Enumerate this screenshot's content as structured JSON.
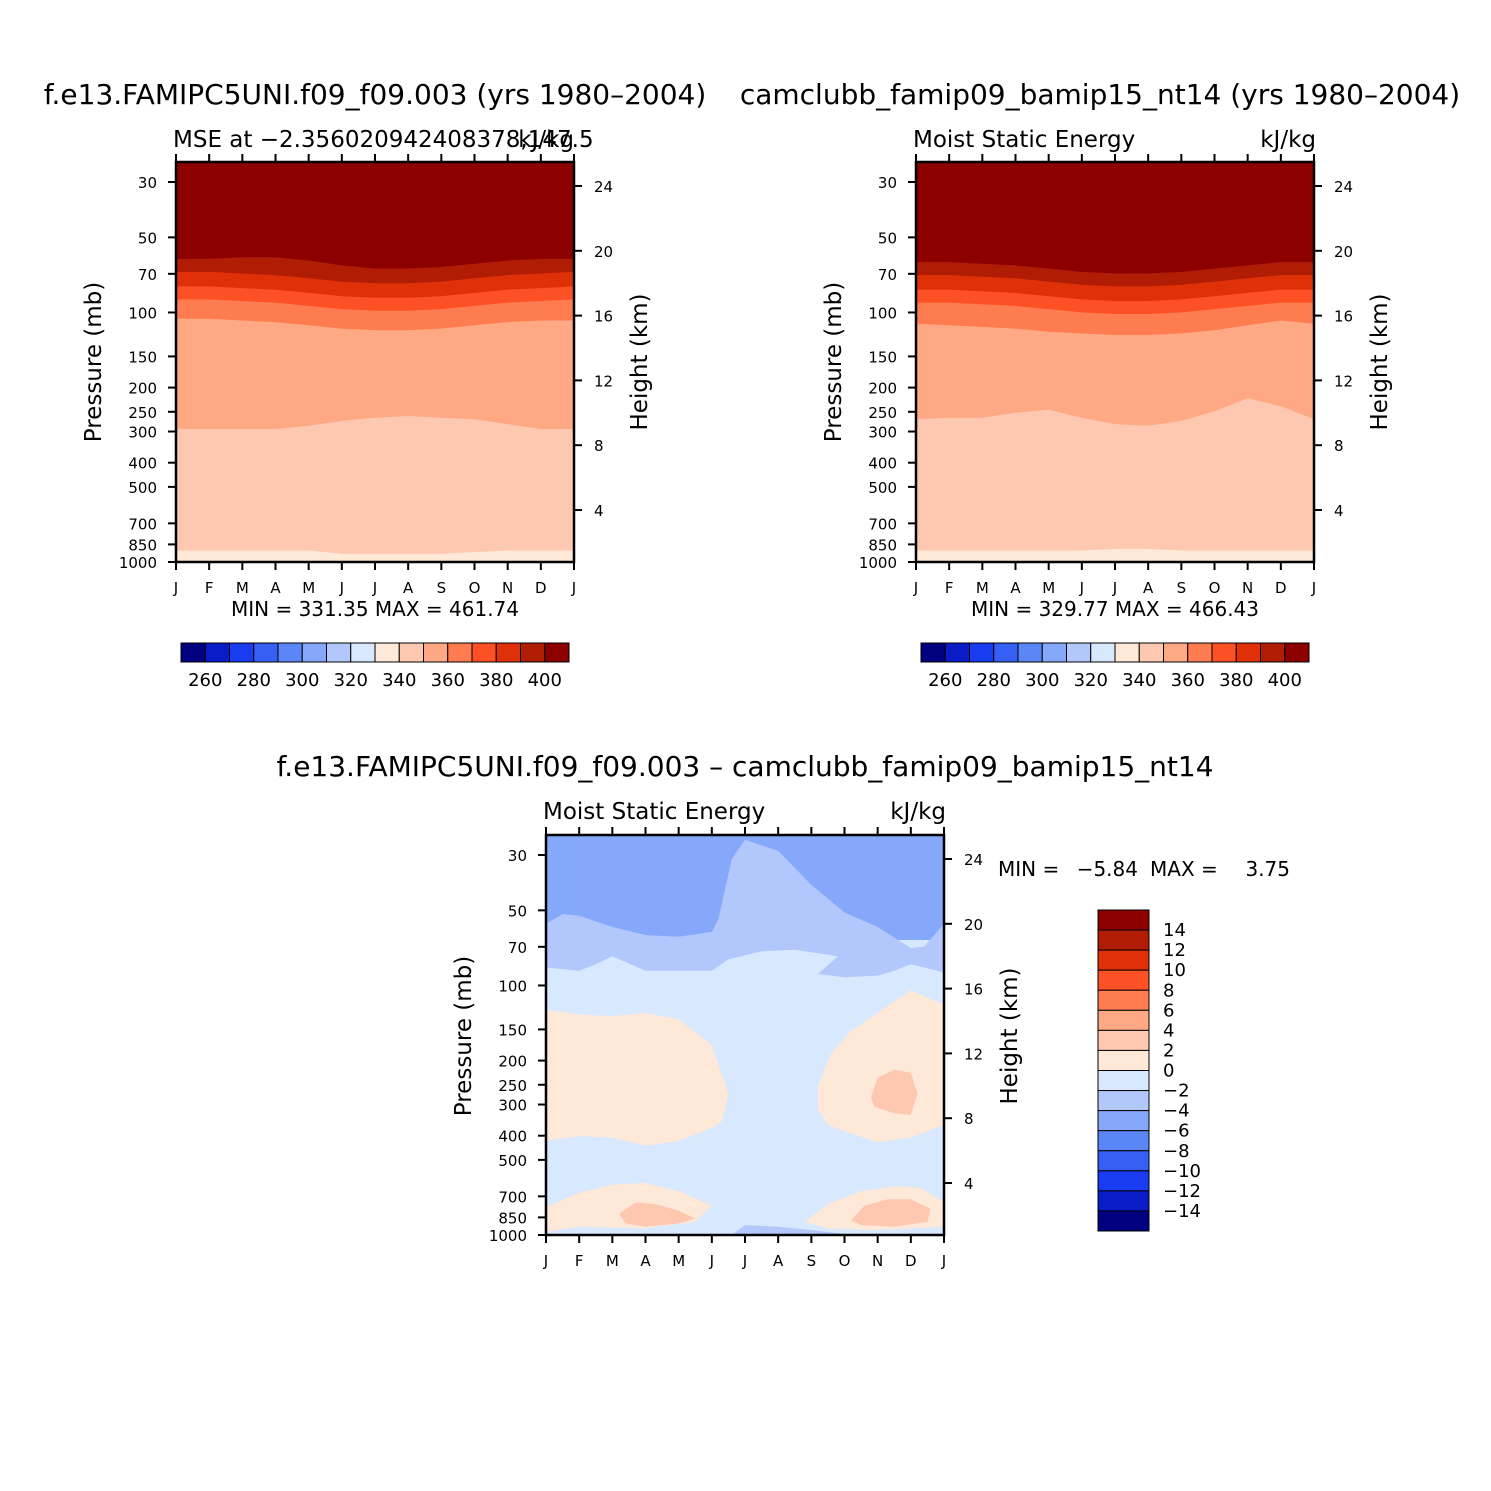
{
  "chart_data": [
    {
      "type": "heatmap",
      "title": "f.e13.FAMIPC5UNI.f09_f09.003 (yrs 1980–2004)",
      "subtitle_left": "MSE at −2.356020942408378,147.5",
      "subtitle_right": "kJ/kg",
      "ylabel": "Pressure (mb)",
      "ylabel_right": "Height (km)",
      "x_ticks": [
        "J",
        "F",
        "M",
        "A",
        "M",
        "J",
        "J",
        "A",
        "S",
        "O",
        "N",
        "D",
        "J"
      ],
      "y_ticks": [
        "30",
        "50",
        "70",
        "100",
        "150",
        "200",
        "250",
        "300",
        "400",
        "500",
        "700",
        "850",
        "1000"
      ],
      "y_ticks_values": [
        30,
        50,
        70,
        100,
        150,
        200,
        250,
        300,
        400,
        500,
        700,
        850,
        1000
      ],
      "height_ticks": [
        "24",
        "20",
        "16",
        "12",
        "8",
        "4"
      ],
      "height_ticks_values": [
        24,
        20,
        16,
        12,
        8,
        4
      ],
      "stats": "MIN = 331.35 MAX = 461.74",
      "levels": [
        260,
        270,
        280,
        290,
        300,
        310,
        320,
        330,
        340,
        350,
        360,
        370,
        380,
        390,
        400
      ],
      "colorbar_labels": [
        "260",
        "280",
        "300",
        "320",
        "340",
        "360",
        "380",
        "400"
      ],
      "colorbar_label_values": [
        260,
        280,
        300,
        320,
        340,
        360,
        380,
        400
      ],
      "colors": [
        "#000080",
        "#0a1cc8",
        "#1a3cf0",
        "#3660f5",
        "#5a86f8",
        "#86a8fb",
        "#b2c8fd",
        "#d8e8fe",
        "#fee8d8",
        "#fec8b0",
        "#fea884",
        "#fe7c50",
        "#fd5024",
        "#e03008",
        "#b01c04",
        "#8c0000"
      ],
      "min": 331.35,
      "max": 461.74,
      "boundaries": [
        {
          "level": 340,
          "heights_km": [
            1.5,
            1.5,
            1.5,
            1.5,
            1.5,
            1.3,
            1.3,
            1.3,
            1.3,
            1.4,
            1.5,
            1.5,
            1.5
          ]
        },
        {
          "level": 350,
          "heights_km": [
            9.0,
            9.0,
            9.0,
            9.0,
            9.2,
            9.5,
            9.7,
            9.8,
            9.7,
            9.6,
            9.3,
            9.0,
            9.0
          ]
        },
        {
          "level": 360,
          "heights_km": [
            15.8,
            15.8,
            15.7,
            15.6,
            15.4,
            15.2,
            15.1,
            15.1,
            15.2,
            15.4,
            15.6,
            15.7,
            15.7
          ]
        },
        {
          "level": 370,
          "heights_km": [
            17.0,
            17.0,
            16.9,
            16.8,
            16.6,
            16.4,
            16.3,
            16.3,
            16.4,
            16.6,
            16.8,
            16.9,
            17.0
          ]
        },
        {
          "level": 380,
          "heights_km": [
            17.8,
            17.8,
            17.7,
            17.6,
            17.4,
            17.2,
            17.1,
            17.1,
            17.2,
            17.4,
            17.6,
            17.7,
            17.8
          ]
        },
        {
          "level": 390,
          "heights_km": [
            18.7,
            18.7,
            18.6,
            18.5,
            18.3,
            18.1,
            18.0,
            18.0,
            18.1,
            18.3,
            18.5,
            18.6,
            18.7
          ]
        },
        {
          "level": 400,
          "heights_km": [
            19.5,
            19.5,
            19.6,
            19.6,
            19.4,
            19.1,
            18.9,
            18.9,
            19.0,
            19.2,
            19.4,
            19.5,
            19.5
          ]
        },
        {
          "level": 410,
          "heights_km": [
            20.2,
            20.2,
            20.3,
            20.3,
            20.1,
            19.8,
            19.6,
            19.6,
            19.7,
            19.9,
            20.1,
            20.2,
            20.2
          ]
        }
      ]
    },
    {
      "type": "heatmap",
      "title": "camclubb_famip09_bamip15_nt14 (yrs 1980–2004)",
      "subtitle_left": "Moist Static Energy",
      "subtitle_right": "kJ/kg",
      "ylabel": "Pressure (mb)",
      "ylabel_right": "Height (km)",
      "x_ticks": [
        "J",
        "F",
        "M",
        "A",
        "M",
        "J",
        "J",
        "A",
        "S",
        "O",
        "N",
        "D",
        "J"
      ],
      "y_ticks": [
        "30",
        "50",
        "70",
        "100",
        "150",
        "200",
        "250",
        "300",
        "400",
        "500",
        "700",
        "850",
        "1000"
      ],
      "y_ticks_values": [
        30,
        50,
        70,
        100,
        150,
        200,
        250,
        300,
        400,
        500,
        700,
        850,
        1000
      ],
      "height_ticks": [
        "24",
        "20",
        "16",
        "12",
        "8",
        "4"
      ],
      "height_ticks_values": [
        24,
        20,
        16,
        12,
        8,
        4
      ],
      "stats": "MIN = 329.77 MAX = 466.43",
      "levels": [
        260,
        270,
        280,
        290,
        300,
        310,
        320,
        330,
        340,
        350,
        360,
        370,
        380,
        390,
        400
      ],
      "colorbar_labels": [
        "260",
        "280",
        "300",
        "320",
        "340",
        "360",
        "380",
        "400"
      ],
      "colorbar_label_values": [
        260,
        280,
        300,
        320,
        340,
        360,
        380,
        400
      ],
      "colors": [
        "#000080",
        "#0a1cc8",
        "#1a3cf0",
        "#3660f5",
        "#5a86f8",
        "#86a8fb",
        "#b2c8fd",
        "#d8e8fe",
        "#fee8d8",
        "#fec8b0",
        "#fea884",
        "#fe7c50",
        "#fd5024",
        "#e03008",
        "#b01c04",
        "#8c0000"
      ],
      "min": 329.77,
      "max": 466.43,
      "boundaries": [
        {
          "level": 340,
          "heights_km": [
            1.5,
            1.5,
            1.5,
            1.5,
            1.5,
            1.5,
            1.6,
            1.6,
            1.5,
            1.5,
            1.5,
            1.5,
            1.5
          ]
        },
        {
          "level": 350,
          "heights_km": [
            9.6,
            9.7,
            9.7,
            10.0,
            10.2,
            9.7,
            9.3,
            9.2,
            9.5,
            10.1,
            10.9,
            10.4,
            9.6
          ]
        },
        {
          "level": 360,
          "heights_km": [
            15.5,
            15.4,
            15.3,
            15.2,
            15.0,
            14.9,
            14.8,
            14.8,
            14.9,
            15.1,
            15.4,
            15.7,
            15.5
          ]
        },
        {
          "level": 370,
          "heights_km": [
            16.8,
            16.8,
            16.7,
            16.6,
            16.4,
            16.2,
            16.1,
            16.1,
            16.2,
            16.4,
            16.6,
            16.8,
            16.8
          ]
        },
        {
          "level": 380,
          "heights_km": [
            17.6,
            17.6,
            17.5,
            17.4,
            17.2,
            17.0,
            16.9,
            16.9,
            17.0,
            17.2,
            17.4,
            17.6,
            17.6
          ]
        },
        {
          "level": 390,
          "heights_km": [
            18.5,
            18.5,
            18.4,
            18.3,
            18.1,
            17.9,
            17.8,
            17.8,
            17.9,
            18.1,
            18.3,
            18.5,
            18.5
          ]
        },
        {
          "level": 400,
          "heights_km": [
            19.3,
            19.3,
            19.2,
            19.1,
            18.9,
            18.7,
            18.6,
            18.6,
            18.7,
            18.9,
            19.1,
            19.3,
            19.3
          ]
        },
        {
          "level": 410,
          "heights_km": [
            20.0,
            20.0,
            19.9,
            19.8,
            19.6,
            19.4,
            19.3,
            19.3,
            19.4,
            19.6,
            19.8,
            20.0,
            20.0
          ]
        }
      ]
    },
    {
      "type": "heatmap",
      "title": "f.e13.FAMIPC5UNI.f09_f09.003 – camclubb_famip09_bamip15_nt14",
      "subtitle_left": "Moist Static Energy",
      "subtitle_right": "kJ/kg",
      "ylabel": "Pressure (mb)",
      "ylabel_right": "Height (km)",
      "x_ticks": [
        "J",
        "F",
        "M",
        "A",
        "M",
        "J",
        "J",
        "A",
        "S",
        "O",
        "N",
        "D",
        "J"
      ],
      "y_ticks": [
        "30",
        "50",
        "70",
        "100",
        "150",
        "200",
        "250",
        "300",
        "400",
        "500",
        "700",
        "850",
        "1000"
      ],
      "y_ticks_values": [
        30,
        50,
        70,
        100,
        150,
        200,
        250,
        300,
        400,
        500,
        700,
        850,
        1000
      ],
      "height_ticks": [
        "24",
        "20",
        "16",
        "12",
        "8",
        "4"
      ],
      "height_ticks_values": [
        24,
        20,
        16,
        12,
        8,
        4
      ],
      "stats_min_label": "MIN =",
      "stats_min": "−5.84",
      "stats_max_label": "MAX =",
      "stats_max": "3.75",
      "levels": [
        -14,
        -12,
        -10,
        -8,
        -6,
        -4,
        -2,
        0,
        2,
        4,
        6,
        8,
        10,
        12,
        14
      ],
      "colorbar_labels": [
        "14",
        "12",
        "10",
        "8",
        "6",
        "4",
        "2",
        "0",
        "−2",
        "−4",
        "−6",
        "−8",
        "−10",
        "−12",
        "−14"
      ],
      "colorbar_label_values": [
        14,
        12,
        10,
        8,
        6,
        4,
        2,
        0,
        -2,
        -4,
        -6,
        -8,
        -10,
        -12,
        -14
      ],
      "colors": [
        "#000080",
        "#0a1cc8",
        "#1a3cf0",
        "#3660f5",
        "#5a86f8",
        "#86a8fb",
        "#b2c8fd",
        "#d8e8fe",
        "#fee8d8",
        "#fec8b0",
        "#fea884",
        "#fe7c50",
        "#fd5024",
        "#e03008",
        "#b01c04",
        "#8c0000"
      ],
      "min": -5.84,
      "max": 3.75,
      "regions": [
        {
          "value_band": "-4..-2",
          "outline_month_km": [
            [
              0,
              20.0
            ],
            [
              0.5,
              20.6
            ],
            [
              1.0,
              20.5
            ],
            [
              2.0,
              19.8
            ],
            [
              3.0,
              19.3
            ],
            [
              4.0,
              19.2
            ],
            [
              5.0,
              19.5
            ],
            [
              5.2,
              20.3
            ],
            [
              5.6,
              24.0
            ],
            [
              6.0,
              25.2
            ],
            [
              7.0,
              24.5
            ],
            [
              8.0,
              22.4
            ],
            [
              9.0,
              20.7
            ],
            [
              10.0,
              19.8
            ],
            [
              11.0,
              18.5
            ],
            [
              11.4,
              18.6
            ],
            [
              12.0,
              20.0
            ],
            [
              12.0,
              17.0
            ],
            [
              11.0,
              17.5
            ],
            [
              10.5,
              17.1
            ],
            [
              10.0,
              16.8
            ],
            [
              9.0,
              16.7
            ],
            [
              8.2,
              16.9
            ],
            [
              8.8,
              18.0
            ],
            [
              7.5,
              18.4
            ],
            [
              6.5,
              18.3
            ],
            [
              5.5,
              17.8
            ],
            [
              5.0,
              17.1
            ],
            [
              3.0,
              17.1
            ],
            [
              2.0,
              18.0
            ],
            [
              1.5,
              17.5
            ],
            [
              1.0,
              17.1
            ],
            [
              0,
              17.3
            ]
          ]
        },
        {
          "value_band": "0..2",
          "outline_month_km": [
            [
              0,
              14.7
            ],
            [
              1.0,
              14.4
            ],
            [
              2.0,
              14.3
            ],
            [
              3.0,
              14.5
            ],
            [
              4.0,
              14.1
            ],
            [
              5.0,
              12.5
            ],
            [
              5.5,
              9.5
            ],
            [
              5.3,
              7.8
            ],
            [
              5.0,
              7.4
            ],
            [
              4.0,
              6.6
            ],
            [
              3.0,
              6.3
            ],
            [
              2.0,
              6.8
            ],
            [
              1.0,
              6.9
            ],
            [
              0,
              6.6
            ]
          ]
        },
        {
          "value_band": "0..2",
          "outline_month_km": [
            [
              8.2,
              8.5
            ],
            [
              8.2,
              10.0
            ],
            [
              8.6,
              12.0
            ],
            [
              9.2,
              13.4
            ],
            [
              10.0,
              14.5
            ],
            [
              11.0,
              15.9
            ],
            [
              12.0,
              15.0
            ],
            [
              12.0,
              7.6
            ],
            [
              11.0,
              6.8
            ],
            [
              10.0,
              6.5
            ],
            [
              9.0,
              7.2
            ],
            [
              8.5,
              7.6
            ]
          ]
        },
        {
          "value_band": "2..4",
          "outline_month_km": [
            [
              9.8,
              9.3
            ],
            [
              10.0,
              10.5
            ],
            [
              10.5,
              11.0
            ],
            [
              11.0,
              10.8
            ],
            [
              11.2,
              9.5
            ],
            [
              11.0,
              8.2
            ],
            [
              10.5,
              8.3
            ],
            [
              9.9,
              8.7
            ]
          ]
        },
        {
          "value_band": "0..2",
          "outline_month_km": [
            [
              0,
              2.5
            ],
            [
              1.0,
              3.4
            ],
            [
              2.0,
              3.9
            ],
            [
              3.0,
              4.0
            ],
            [
              4.0,
              3.5
            ],
            [
              5.0,
              2.6
            ],
            [
              4.5,
              1.6
            ],
            [
              3.0,
              1.2
            ],
            [
              1.0,
              1.3
            ],
            [
              0,
              1.0
            ]
          ]
        },
        {
          "value_band": "2..4",
          "outline_month_km": [
            [
              2.2,
              2.1
            ],
            [
              2.7,
              2.8
            ],
            [
              3.3,
              2.7
            ],
            [
              4.0,
              2.3
            ],
            [
              4.5,
              1.8
            ],
            [
              4.0,
              1.5
            ],
            [
              3.0,
              1.3
            ],
            [
              2.4,
              1.5
            ]
          ]
        },
        {
          "value_band": "0..2",
          "outline_month_km": [
            [
              7.8,
              1.6
            ],
            [
              8.5,
              2.7
            ],
            [
              9.5,
              3.5
            ],
            [
              10.5,
              3.8
            ],
            [
              11.3,
              3.7
            ],
            [
              12.0,
              2.8
            ],
            [
              12.0,
              1.3
            ],
            [
              10.0,
              1.1
            ],
            [
              8.5,
              1.2
            ]
          ]
        },
        {
          "value_band": "2..4",
          "outline_month_km": [
            [
              9.2,
              1.7
            ],
            [
              9.6,
              2.6
            ],
            [
              10.3,
              3.0
            ],
            [
              11.0,
              3.0
            ],
            [
              11.6,
              2.4
            ],
            [
              11.5,
              1.6
            ],
            [
              10.5,
              1.3
            ],
            [
              9.5,
              1.4
            ]
          ]
        },
        {
          "value_band": "-4..-2",
          "outline_month_km": [
            [
              5.6,
              0.8
            ],
            [
              6.0,
              1.4
            ],
            [
              7.0,
              1.3
            ],
            [
              8.0,
              1.1
            ],
            [
              9.2,
              0.8
            ],
            [
              8.0,
              0.6
            ],
            [
              6.5,
              0.5
            ]
          ]
        }
      ]
    }
  ]
}
